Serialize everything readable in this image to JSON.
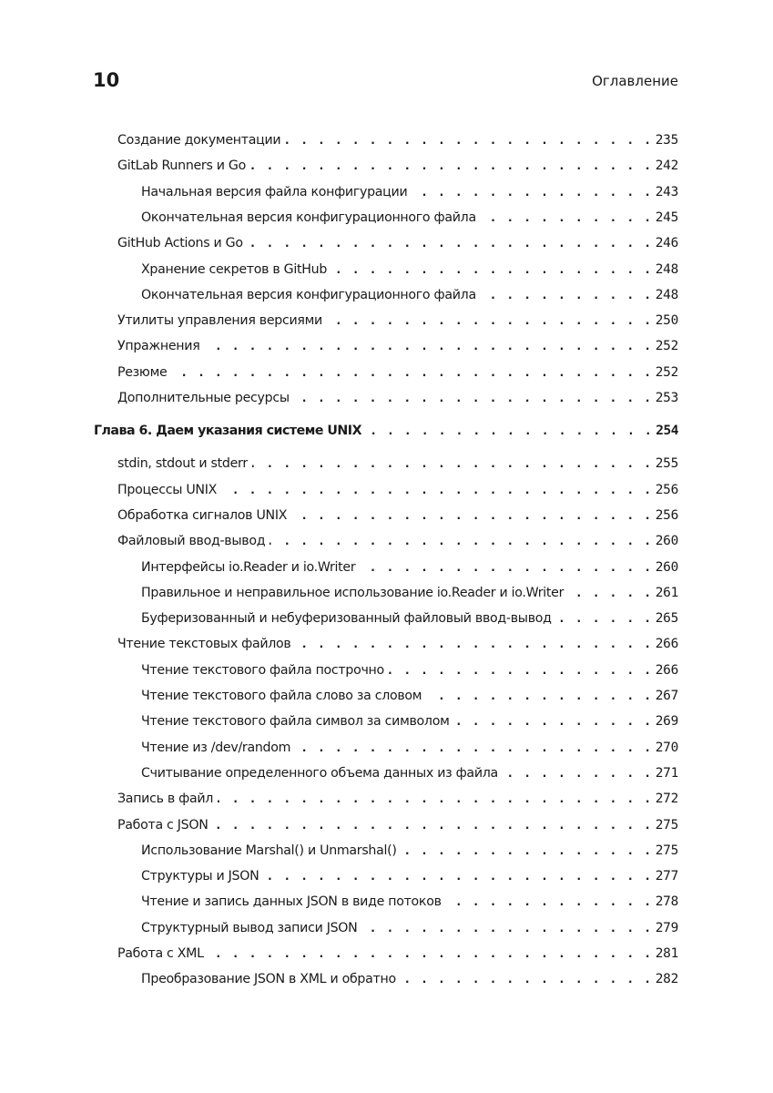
{
  "header": {
    "page_number": "10",
    "running_title": "Оглавление"
  },
  "toc": [
    {
      "level": 1,
      "title": "Создание документации",
      "page": "235"
    },
    {
      "level": 1,
      "title": "GitLab Runners и Go",
      "page": "242"
    },
    {
      "level": 2,
      "title": "Начальная версия файла конфигурации",
      "page": "243"
    },
    {
      "level": 2,
      "title": "Окончательная версия конфигурационного файла",
      "page": "245"
    },
    {
      "level": 1,
      "title": "GitHub Actions и Go",
      "page": "246"
    },
    {
      "level": 2,
      "title": "Хранение секретов в GitHub",
      "page": "248"
    },
    {
      "level": 2,
      "title": "Окончательная версия конфигурационного файла",
      "page": "248"
    },
    {
      "level": 1,
      "title": "Утилиты управления версиями",
      "page": "250"
    },
    {
      "level": 1,
      "title": "Упражнения",
      "page": "252"
    },
    {
      "level": 1,
      "title": "Резюме",
      "page": "252"
    },
    {
      "level": 1,
      "title": "Дополнительные ресурсы",
      "page": "253"
    },
    {
      "level": 0,
      "title": "Глава 6. Даем указания системе UNIX",
      "page": "254"
    },
    {
      "level": 1,
      "title": "stdin, stdout и stderr",
      "page": "255"
    },
    {
      "level": 1,
      "title": "Процессы UNIX",
      "page": "256"
    },
    {
      "level": 1,
      "title": "Обработка сигналов UNIX",
      "page": "256"
    },
    {
      "level": 1,
      "title": "Файловый ввод-вывод",
      "page": "260"
    },
    {
      "level": 2,
      "title": "Интерфейсы io.Reader и io.Writer",
      "page": "260"
    },
    {
      "level": 2,
      "title": "Правильное и неправильное использование io.Reader и io.Writer",
      "page": "261"
    },
    {
      "level": 2,
      "title": "Буферизованный и небуферизованный файловый ввод-вывод",
      "page": "265"
    },
    {
      "level": 1,
      "title": "Чтение текстовых файлов",
      "page": "266"
    },
    {
      "level": 2,
      "title": "Чтение текстового файла построчно",
      "page": "266"
    },
    {
      "level": 2,
      "title": "Чтение текстового файла слово за словом",
      "page": "267"
    },
    {
      "level": 2,
      "title": "Чтение текстового файла символ за символом",
      "page": "269"
    },
    {
      "level": 2,
      "title": "Чтение из /dev/random",
      "page": "270"
    },
    {
      "level": 2,
      "title": "Считывание определенного объема данных из файла",
      "page": "271"
    },
    {
      "level": 1,
      "title": "Запись в файл",
      "page": "272"
    },
    {
      "level": 1,
      "title": "Работа с JSON",
      "page": "275"
    },
    {
      "level": 2,
      "title": "Использование Marshal() и Unmarshal()",
      "page": "275"
    },
    {
      "level": 2,
      "title": "Структуры и JSON",
      "page": "277"
    },
    {
      "level": 2,
      "title": "Чтение и запись данных JSON в виде потоков",
      "page": "278"
    },
    {
      "level": 2,
      "title": "Структурный вывод записи JSON",
      "page": "279"
    },
    {
      "level": 1,
      "title": "Работа с XML",
      "page": "281"
    },
    {
      "level": 2,
      "title": "Преобразование JSON в XML и обратно",
      "page": "282"
    }
  ]
}
